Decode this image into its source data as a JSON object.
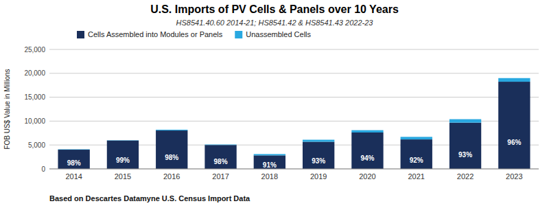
{
  "chart_data": {
    "type": "bar",
    "stacked": true,
    "title": "U.S. Imports of PV Cells & Panels over 10 Years",
    "subtitle": "HS8541.40.60 2014-21; HS8541.42 & HS8541.43 2022-23",
    "ylabel": "FOB US$ Value in Millions",
    "annotations": [
      "Based on Descartes Datamyne U.S. Census Import Data"
    ],
    "categories": [
      "2014",
      "2015",
      "2016",
      "2017",
      "2018",
      "2019",
      "2020",
      "2021",
      "2022",
      "2023"
    ],
    "series": [
      {
        "name": "Cells Assembled into Modules or Panels",
        "color": "#1a2f5a",
        "values": [
          4018,
          5940,
          8036,
          4998,
          2821,
          5673,
          7614,
          6164,
          9672,
          18240
        ],
        "share_labels": [
          "98%",
          "99%",
          "98%",
          "98%",
          "91%",
          "93%",
          "94%",
          "92%",
          "93%",
          "96%"
        ]
      },
      {
        "name": "Unassembled Cells",
        "color": "#29a8e0",
        "values": [
          82,
          60,
          164,
          102,
          279,
          427,
          486,
          536,
          728,
          760
        ]
      }
    ],
    "ylim": [
      0,
      25000
    ],
    "yticks": [
      0,
      {
        "value": 5000,
        "label": "5,000"
      },
      {
        "value": 10000,
        "label": "10,000"
      },
      {
        "value": 15000,
        "label": "15,000"
      },
      {
        "value": 20000,
        "label": "20,000"
      },
      {
        "value": 25000,
        "label": "25,000"
      }
    ],
    "grid": true,
    "legend": "top"
  }
}
